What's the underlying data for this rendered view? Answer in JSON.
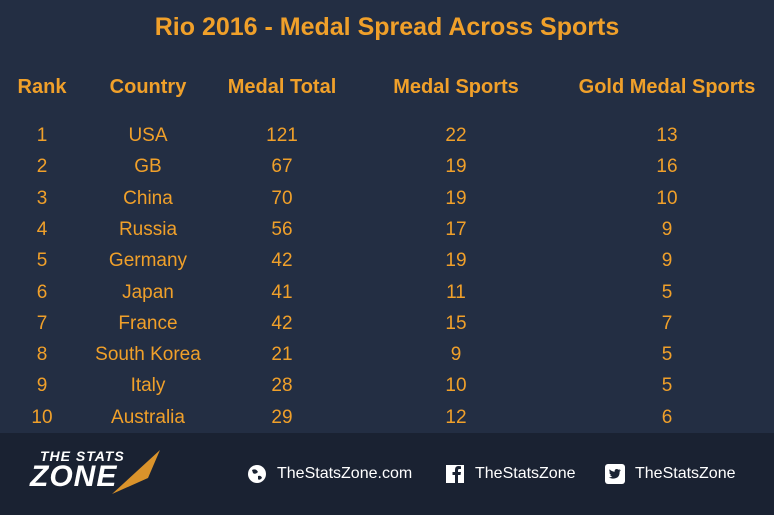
{
  "chart_data": {
    "type": "table",
    "title": "Rio 2016 - Medal Spread Across Sports",
    "columns": [
      "Rank",
      "Country",
      "Medal Total",
      "Medal Sports",
      "Gold Medal Sports"
    ],
    "rows": [
      [
        "1",
        "USA",
        "121",
        "22",
        "13"
      ],
      [
        "2",
        "GB",
        "67",
        "19",
        "16"
      ],
      [
        "3",
        "China",
        "70",
        "19",
        "10"
      ],
      [
        "4",
        "Russia",
        "56",
        "17",
        "9"
      ],
      [
        "5",
        "Germany",
        "42",
        "19",
        "9"
      ],
      [
        "6",
        "Japan",
        "41",
        "11",
        "5"
      ],
      [
        "7",
        "France",
        "42",
        "15",
        "7"
      ],
      [
        "8",
        "South Korea",
        "21",
        "9",
        "5"
      ],
      [
        "9",
        "Italy",
        "28",
        "10",
        "5"
      ],
      [
        "10",
        "Australia",
        "29",
        "12",
        "6"
      ]
    ]
  },
  "branding": {
    "logo_top": "THE STATS",
    "logo_main": "ZONE",
    "website": "TheStatsZone.com",
    "facebook": "TheStatsZone",
    "twitter": "TheStatsZone"
  },
  "colors": {
    "background": "#232e43",
    "footer": "#1a2232",
    "text": "#f0a02a"
  }
}
